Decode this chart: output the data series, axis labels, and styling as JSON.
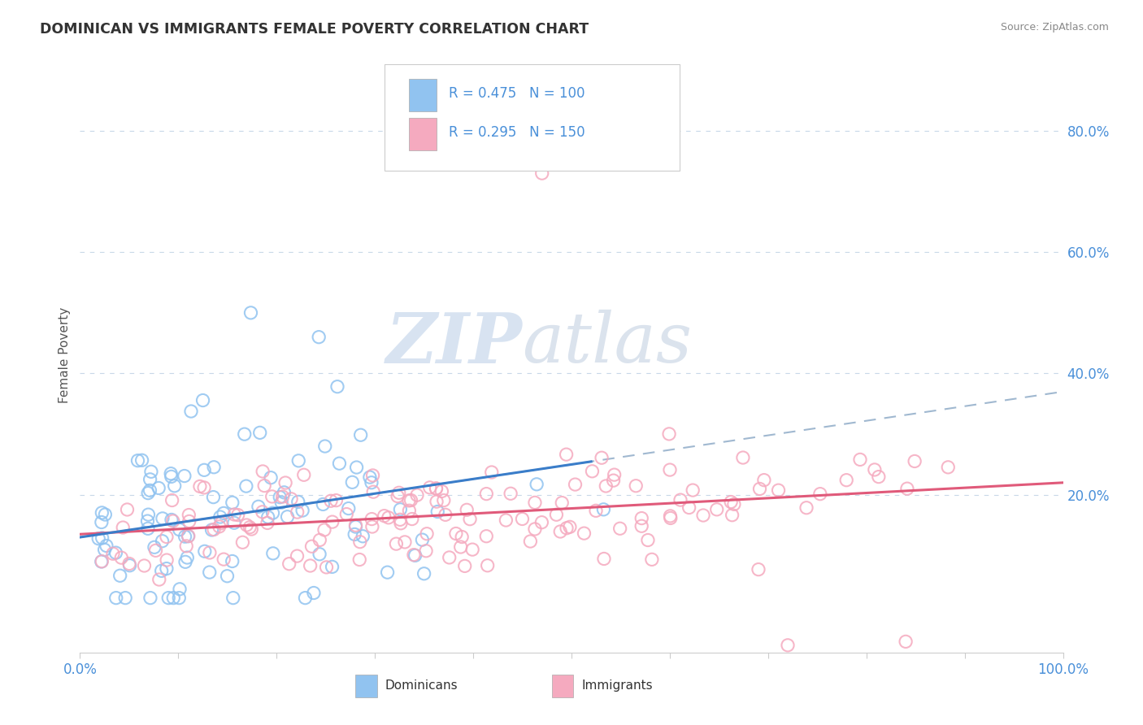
{
  "title": "DOMINICAN VS IMMIGRANTS FEMALE POVERTY CORRELATION CHART",
  "source": "Source: ZipAtlas.com",
  "ylabel": "Female Poverty",
  "xlim": [
    0,
    1
  ],
  "ylim": [
    -0.06,
    0.92
  ],
  "ytick_positions": [
    0.2,
    0.4,
    0.6,
    0.8
  ],
  "ytick_labels": [
    "20.0%",
    "40.0%",
    "60.0%",
    "80.0%"
  ],
  "blue_color": "#91C3F0",
  "pink_color": "#F5AABF",
  "blue_edge_color": "#5A9FD4",
  "pink_edge_color": "#E8728A",
  "blue_line_color": "#3A7DC9",
  "pink_line_color": "#E05A7A",
  "dashed_line_color": "#A0B8D0",
  "legend_R1": "R = 0.475",
  "legend_N1": "N = 100",
  "legend_R2": "R = 0.295",
  "legend_N2": "N = 150",
  "blue_R": 0.475,
  "blue_N": 100,
  "pink_R": 0.295,
  "pink_N": 150,
  "blue_intercept": 0.13,
  "blue_slope": 0.24,
  "blue_line_end_x": 0.52,
  "pink_intercept": 0.135,
  "pink_slope": 0.085,
  "title_color": "#333333",
  "axis_color": "#4A90D9",
  "grid_color": "#C8D8E8",
  "background_color": "#FFFFFF"
}
